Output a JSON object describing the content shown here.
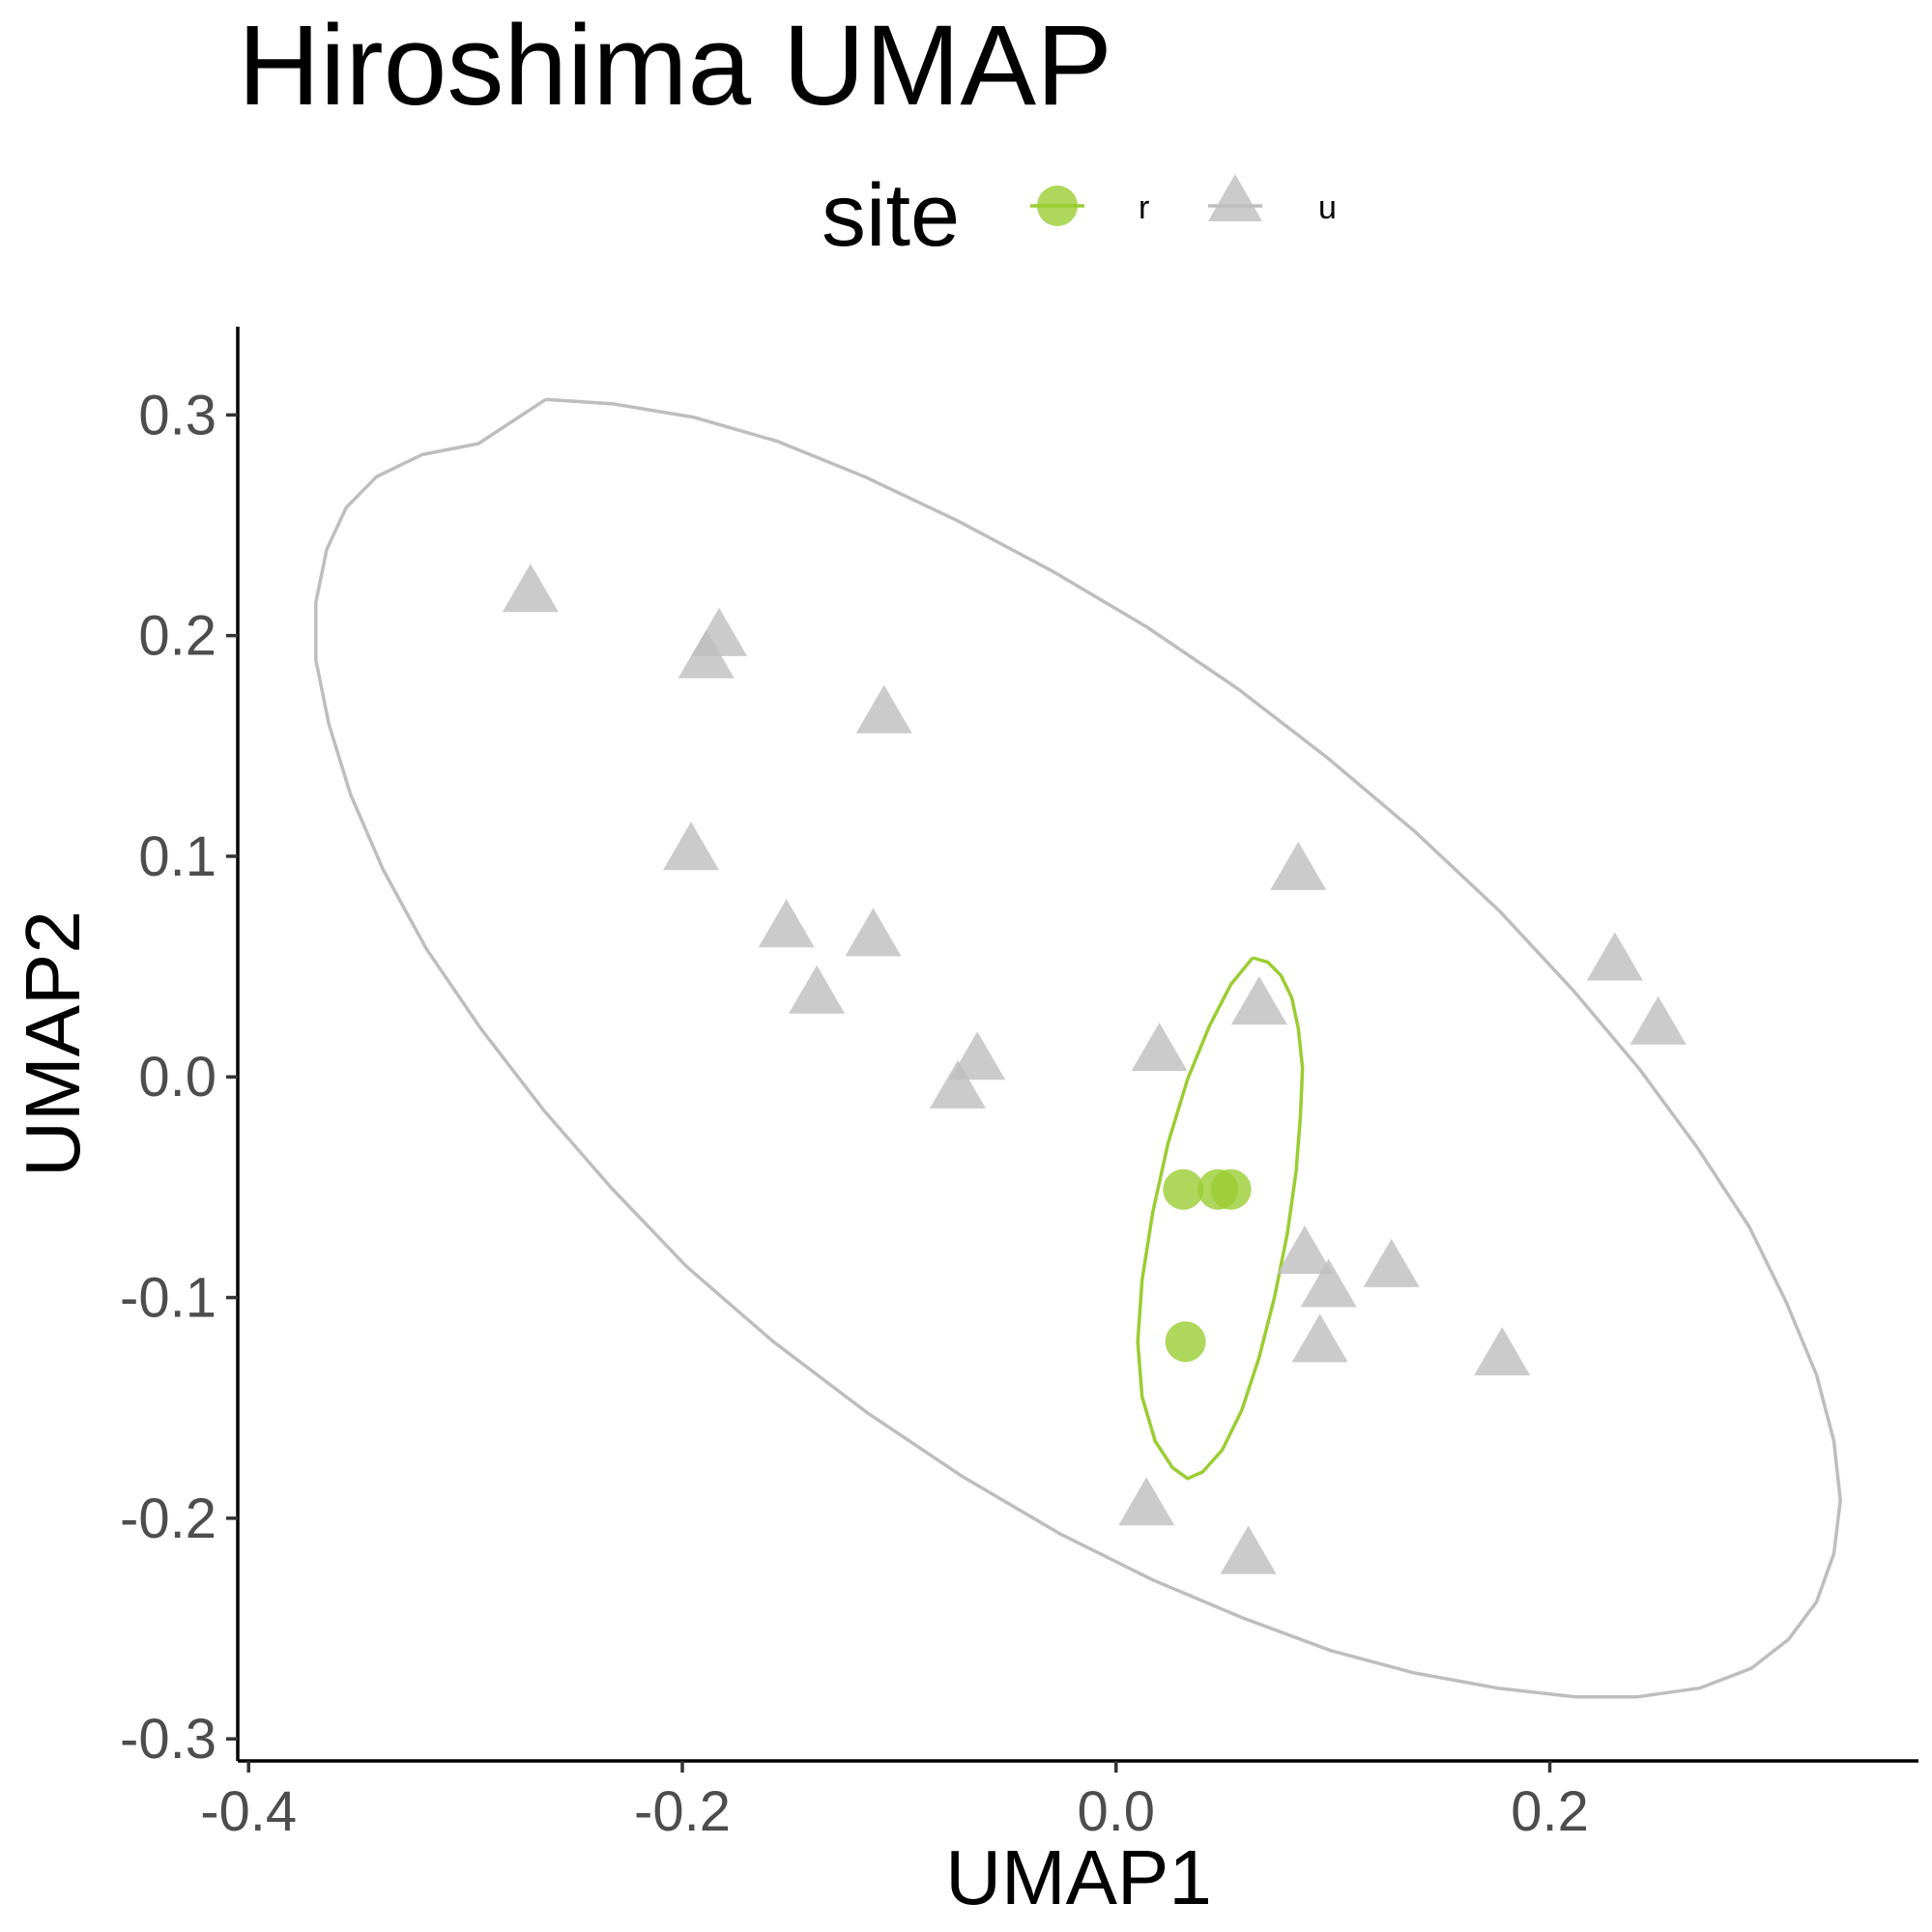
{
  "chart_data": {
    "type": "scatter",
    "title": "Hiroshima UMAP",
    "xlabel": "UMAP1",
    "ylabel": "UMAP2",
    "xlim": [
      -0.405,
      0.37
    ],
    "ylim": [
      -0.31,
      0.34
    ],
    "x_ticks": [
      -0.4,
      -0.2,
      0.0,
      0.2
    ],
    "x_tick_labels": [
      "-0.4",
      "-0.2",
      "0.0",
      "0.2"
    ],
    "y_ticks": [
      -0.3,
      -0.2,
      -0.1,
      0.0,
      0.1,
      0.2,
      0.3
    ],
    "y_tick_labels": [
      "-0.3",
      "-0.2",
      "-0.1",
      "0.0",
      "0.1",
      "0.2",
      "0.3"
    ],
    "grid": false,
    "legend": {
      "title": "site",
      "placement": "top"
    },
    "series": [
      {
        "name": "r",
        "marker": "circle",
        "color": "#9acd32",
        "points": [
          [
            0.031,
            -0.051
          ],
          [
            0.047,
            -0.051
          ],
          [
            0.053,
            -0.051
          ],
          [
            0.032,
            -0.12
          ]
        ],
        "ellipse": [
          [
            0.063,
            0.054
          ],
          [
            0.07,
            0.052
          ],
          [
            0.076,
            0.046
          ],
          [
            0.081,
            0.036
          ],
          [
            0.084,
            0.022
          ],
          [
            0.086,
            0.004
          ],
          [
            0.085,
            -0.018
          ],
          [
            0.083,
            -0.043
          ],
          [
            0.079,
            -0.071
          ],
          [
            0.073,
            -0.1
          ],
          [
            0.066,
            -0.127
          ],
          [
            0.058,
            -0.151
          ],
          [
            0.049,
            -0.169
          ],
          [
            0.04,
            -0.179
          ],
          [
            0.033,
            -0.182
          ],
          [
            0.026,
            -0.177
          ],
          [
            0.018,
            -0.165
          ],
          [
            0.012,
            -0.145
          ],
          [
            0.01,
            -0.12
          ],
          [
            0.012,
            -0.092
          ],
          [
            0.017,
            -0.061
          ],
          [
            0.024,
            -0.03
          ],
          [
            0.033,
            -0.001
          ],
          [
            0.043,
            0.023
          ],
          [
            0.053,
            0.042
          ],
          [
            0.063,
            0.054
          ]
        ]
      },
      {
        "name": "u",
        "marker": "triangle",
        "color": "#bebebe",
        "points": [
          [
            -0.27,
            0.218
          ],
          [
            -0.183,
            0.198
          ],
          [
            -0.189,
            0.188
          ],
          [
            -0.107,
            0.163
          ],
          [
            -0.196,
            0.101
          ],
          [
            -0.152,
            0.066
          ],
          [
            -0.112,
            0.062
          ],
          [
            -0.138,
            0.036
          ],
          [
            -0.064,
            0.006
          ],
          [
            -0.073,
            -0.007
          ],
          [
            0.02,
            0.01
          ],
          [
            0.066,
            0.031
          ],
          [
            0.084,
            0.092
          ],
          [
            0.23,
            0.051
          ],
          [
            0.25,
            0.022
          ],
          [
            0.087,
            -0.082
          ],
          [
            0.098,
            -0.097
          ],
          [
            0.127,
            -0.088
          ],
          [
            0.094,
            -0.122
          ],
          [
            0.178,
            -0.128
          ],
          [
            0.014,
            -0.196
          ],
          [
            0.061,
            -0.218
          ]
        ],
        "ellipse": [
          [
            -0.263,
            0.307
          ],
          [
            -0.232,
            0.305
          ],
          [
            -0.195,
            0.299
          ],
          [
            -0.156,
            0.288
          ],
          [
            -0.116,
            0.272
          ],
          [
            -0.073,
            0.252
          ],
          [
            -0.029,
            0.229
          ],
          [
            0.014,
            0.204
          ],
          [
            0.056,
            0.176
          ],
          [
            0.097,
            0.145
          ],
          [
            0.138,
            0.111
          ],
          [
            0.177,
            0.075
          ],
          [
            0.211,
            0.039
          ],
          [
            0.241,
            0.004
          ],
          [
            0.268,
            -0.032
          ],
          [
            0.292,
            -0.068
          ],
          [
            0.309,
            -0.102
          ],
          [
            0.323,
            -0.135
          ],
          [
            0.331,
            -0.165
          ],
          [
            0.334,
            -0.192
          ],
          [
            0.331,
            -0.216
          ],
          [
            0.323,
            -0.238
          ],
          [
            0.31,
            -0.255
          ],
          [
            0.293,
            -0.268
          ],
          [
            0.269,
            -0.277
          ],
          [
            0.24,
            -0.281
          ],
          [
            0.212,
            -0.281
          ],
          [
            0.176,
            -0.277
          ],
          [
            0.137,
            -0.27
          ],
          [
            0.099,
            -0.26
          ],
          [
            0.058,
            -0.245
          ],
          [
            0.017,
            -0.228
          ],
          [
            -0.026,
            -0.207
          ],
          [
            -0.071,
            -0.181
          ],
          [
            -0.115,
            -0.152
          ],
          [
            -0.158,
            -0.12
          ],
          [
            -0.198,
            -0.086
          ],
          [
            -0.233,
            -0.05
          ],
          [
            -0.264,
            -0.015
          ],
          [
            -0.293,
            0.022
          ],
          [
            -0.318,
            0.058
          ],
          [
            -0.338,
            0.094
          ],
          [
            -0.353,
            0.128
          ],
          [
            -0.363,
            0.16
          ],
          [
            -0.369,
            0.189
          ],
          [
            -0.369,
            0.215
          ],
          [
            -0.364,
            0.239
          ],
          [
            -0.355,
            0.258
          ],
          [
            -0.341,
            0.272
          ],
          [
            -0.32,
            0.282
          ],
          [
            -0.294,
            0.287
          ],
          [
            -0.263,
            0.307
          ]
        ]
      }
    ]
  }
}
